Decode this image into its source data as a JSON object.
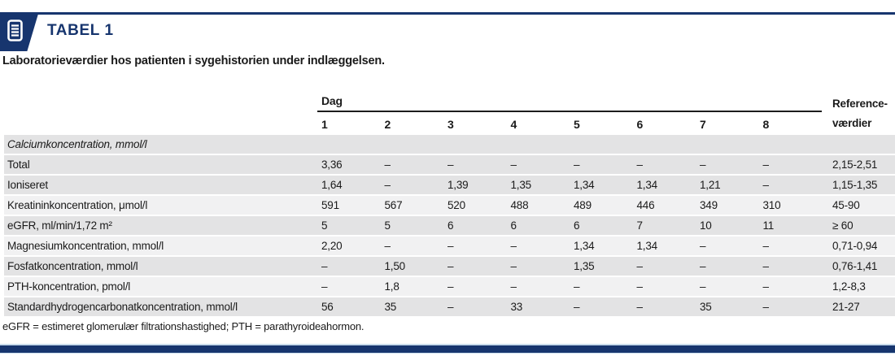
{
  "colors": {
    "navy": "#17356e",
    "row_gray": "#e3e3e4",
    "row_light": "#f1f1f2",
    "rule_black": "#1c1c1c"
  },
  "badge": {
    "label": "TABEL 1",
    "icon": "document-icon"
  },
  "subtitle": "Laboratorieværdier hos patienten i sygehistorien under indlæggelsen.",
  "table": {
    "day_header": "Dag",
    "day_columns": [
      "1",
      "2",
      "3",
      "4",
      "5",
      "6",
      "7",
      "8"
    ],
    "reference_header_line1": "Reference-",
    "reference_header_line2": "værdier",
    "rows": [
      {
        "label": "Calciumkoncentration, mmol/l",
        "italic": true,
        "section": true,
        "values": [],
        "reference": ""
      },
      {
        "label": "Total",
        "values": [
          "3,36",
          "–",
          "–",
          "–",
          "–",
          "–",
          "–",
          "–"
        ],
        "reference": "2,15-2,51"
      },
      {
        "label": "Ioniseret",
        "values": [
          "1,64",
          "–",
          "1,39",
          "1,35",
          "1,34",
          "1,34",
          "1,21",
          "–"
        ],
        "reference": "1,15-1,35"
      },
      {
        "label": "Kreatininkoncentration, μmol/l",
        "values": [
          "591",
          "567",
          "520",
          "488",
          "489",
          "446",
          "349",
          "310"
        ],
        "reference": "45-90"
      },
      {
        "label": "eGFR, ml/min/1,72 m²",
        "values": [
          "5",
          "5",
          "6",
          "6",
          "6",
          "7",
          "10",
          "11"
        ],
        "reference": "≥ 60"
      },
      {
        "label": "Magnesiumkoncentration, mmol/l",
        "values": [
          "2,20",
          "–",
          "–",
          "–",
          "1,34",
          "1,34",
          "–",
          "–"
        ],
        "reference": "0,71-0,94"
      },
      {
        "label": "Fosfatkoncentration, mmol/l",
        "values": [
          "–",
          "1,50",
          "–",
          "–",
          "1,35",
          "–",
          "–",
          "–"
        ],
        "reference": "0,76-1,41"
      },
      {
        "label": "PTH-koncentration, pmol/l",
        "values": [
          "–",
          "1,8",
          "–",
          "–",
          "–",
          "–",
          "–",
          "–"
        ],
        "reference": "1,2-8,3"
      },
      {
        "label": "Standardhydrogencarbonatkoncentration, mmol/l",
        "values": [
          "56",
          "35",
          "–",
          "33",
          "–",
          "–",
          "35",
          "–"
        ],
        "reference": "21-27"
      }
    ]
  },
  "footnote": "eGFR = estimeret glomerulær filtrationshastighed; PTH = parathyroideahormon."
}
